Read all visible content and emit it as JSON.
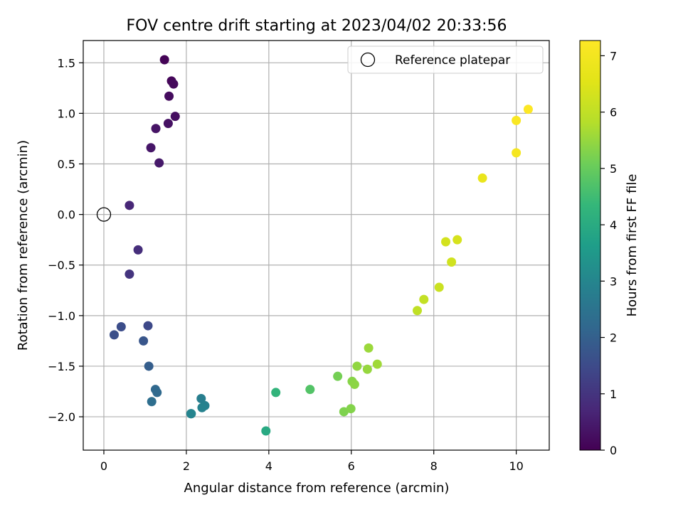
{
  "chart_data": {
    "type": "scatter",
    "title": "FOV centre drift starting at 2023/04/02 20:33:56",
    "xlabel": "Angular distance from reference (arcmin)",
    "ylabel": "Rotation from reference (arcmin)",
    "xlim": [
      -0.5,
      10.8
    ],
    "ylim": [
      -2.33,
      1.72
    ],
    "x_ticks": [
      0,
      2,
      4,
      6,
      8,
      10
    ],
    "x_tick_labels": [
      "0",
      "2",
      "4",
      "6",
      "8",
      "10"
    ],
    "y_ticks": [
      1.5,
      1.0,
      0.5,
      0.0,
      -0.5,
      -1.0,
      -1.5,
      -2.0
    ],
    "y_tick_labels": [
      "1.5",
      "1.0",
      "0.5",
      "0.0",
      "−0.5",
      "−1.0",
      "−1.5",
      "−2.0"
    ],
    "grid": true,
    "legend": {
      "position": "top-right",
      "entries": [
        {
          "label": "Reference platepar",
          "marker": "open-circle"
        }
      ]
    },
    "reference_point": {
      "x": 0,
      "y": 0
    },
    "colorbar": {
      "label": "Hours from first FF file",
      "colormap": "viridis",
      "range": [
        0,
        7.27
      ],
      "ticks": [
        0,
        1,
        2,
        3,
        4,
        5,
        6,
        7
      ],
      "tick_labels": [
        "0",
        "1",
        "2",
        "3",
        "4",
        "5",
        "6",
        "7"
      ]
    },
    "points": [
      {
        "x": 1.47,
        "y": 1.53,
        "c": 0.05
      },
      {
        "x": 1.64,
        "y": 1.32,
        "c": 0.1
      },
      {
        "x": 1.69,
        "y": 1.29,
        "c": 0.15
      },
      {
        "x": 1.58,
        "y": 1.17,
        "c": 0.2
      },
      {
        "x": 1.73,
        "y": 0.97,
        "c": 0.25
      },
      {
        "x": 1.56,
        "y": 0.9,
        "c": 0.3
      },
      {
        "x": 1.26,
        "y": 0.85,
        "c": 0.35
      },
      {
        "x": 1.14,
        "y": 0.66,
        "c": 0.4
      },
      {
        "x": 1.34,
        "y": 0.51,
        "c": 0.45
      },
      {
        "x": 0.62,
        "y": 0.09,
        "c": 0.7
      },
      {
        "x": 0.83,
        "y": -0.35,
        "c": 0.85
      },
      {
        "x": 0.62,
        "y": -0.59,
        "c": 1.0
      },
      {
        "x": 1.07,
        "y": -1.1,
        "c": 1.45
      },
      {
        "x": 0.42,
        "y": -1.11,
        "c": 1.55
      },
      {
        "x": 0.25,
        "y": -1.19,
        "c": 1.6
      },
      {
        "x": 0.96,
        "y": -1.25,
        "c": 1.75
      },
      {
        "x": 1.09,
        "y": -1.5,
        "c": 1.95
      },
      {
        "x": 1.25,
        "y": -1.73,
        "c": 2.2
      },
      {
        "x": 1.29,
        "y": -1.76,
        "c": 2.25
      },
      {
        "x": 1.16,
        "y": -1.85,
        "c": 2.35
      },
      {
        "x": 2.36,
        "y": -1.82,
        "c": 2.8
      },
      {
        "x": 2.45,
        "y": -1.89,
        "c": 2.85
      },
      {
        "x": 2.38,
        "y": -1.91,
        "c": 2.9
      },
      {
        "x": 2.11,
        "y": -1.97,
        "c": 2.95
      },
      {
        "x": 2.12,
        "y": -1.97,
        "c": 2.97
      },
      {
        "x": 3.93,
        "y": -2.14,
        "c": 3.95
      },
      {
        "x": 4.17,
        "y": -1.76,
        "c": 4.25
      },
      {
        "x": 5.0,
        "y": -1.73,
        "c": 4.75
      },
      {
        "x": 5.67,
        "y": -1.6,
        "c": 5.15
      },
      {
        "x": 5.82,
        "y": -1.95,
        "c": 5.25
      },
      {
        "x": 5.99,
        "y": -1.92,
        "c": 5.3
      },
      {
        "x": 6.02,
        "y": -1.65,
        "c": 5.35
      },
      {
        "x": 6.08,
        "y": -1.68,
        "c": 5.4
      },
      {
        "x": 6.14,
        "y": -1.5,
        "c": 5.45
      },
      {
        "x": 6.39,
        "y": -1.53,
        "c": 5.5
      },
      {
        "x": 6.42,
        "y": -1.32,
        "c": 5.55
      },
      {
        "x": 6.63,
        "y": -1.48,
        "c": 5.6
      },
      {
        "x": 7.6,
        "y": -0.95,
        "c": 6.0
      },
      {
        "x": 7.76,
        "y": -0.84,
        "c": 6.05
      },
      {
        "x": 8.13,
        "y": -0.72,
        "c": 6.15
      },
      {
        "x": 8.43,
        "y": -0.47,
        "c": 6.25
      },
      {
        "x": 8.29,
        "y": -0.27,
        "c": 6.3
      },
      {
        "x": 8.57,
        "y": -0.25,
        "c": 6.35
      },
      {
        "x": 9.18,
        "y": 0.36,
        "c": 6.75
      },
      {
        "x": 10.0,
        "y": 0.61,
        "c": 7.05
      },
      {
        "x": 10.0,
        "y": 0.93,
        "c": 7.15
      },
      {
        "x": 10.29,
        "y": 1.04,
        "c": 7.25
      }
    ]
  }
}
